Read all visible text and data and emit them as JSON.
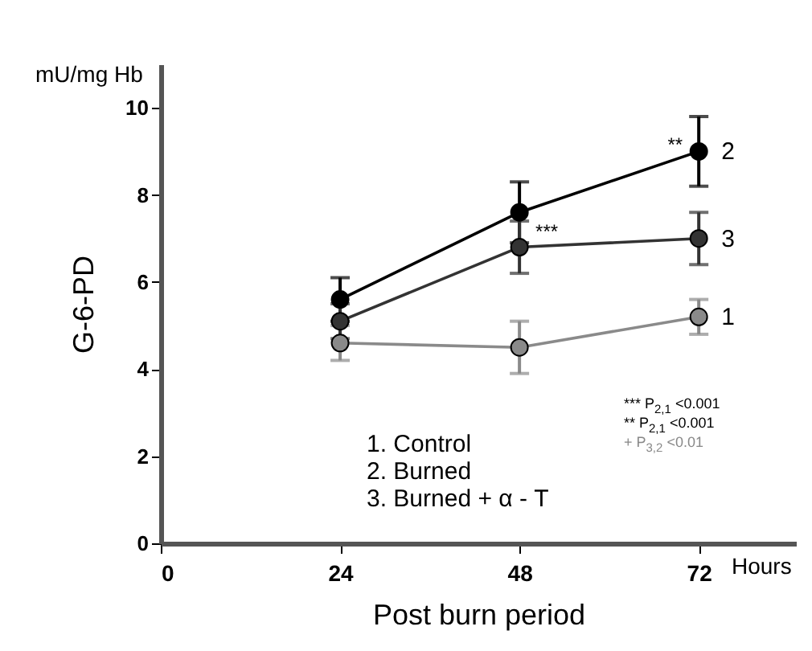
{
  "chart_data": {
    "type": "line",
    "xlabel": "Post burn period",
    "ylabel": "G-6-PD",
    "x": [
      24,
      48,
      72
    ],
    "series": [
      {
        "name": "1",
        "color": "#8a8a8a",
        "values": [
          4.6,
          4.5,
          5.2
        ],
        "errors": [
          0.4,
          0.6,
          0.4
        ]
      },
      {
        "name": "2",
        "color": "#000000",
        "values": [
          5.6,
          7.6,
          9.0
        ],
        "errors": [
          0.5,
          0.7,
          0.8
        ]
      },
      {
        "name": "3",
        "color": "#333333",
        "values": [
          5.1,
          6.8,
          7.0
        ],
        "errors": [
          0.4,
          0.6,
          0.6
        ]
      }
    ],
    "xlim": [
      0,
      85
    ],
    "xticks": [
      0,
      24,
      48,
      72
    ],
    "ylim": [
      0,
      11
    ],
    "yticks": [
      0,
      2,
      4,
      6,
      8,
      10
    ],
    "grid": false,
    "legend": false,
    "marker": "circle",
    "line_style": "solid",
    "annotations": [
      {
        "text": "**",
        "x": 72,
        "y": 9.0
      },
      {
        "text": "***",
        "x": 48,
        "y": 7.6
      },
      "mU/mg Hb",
      "Hours",
      "1. Control",
      "2. Burned",
      "3. Burned + α - T",
      "*** P$_{2,1}$ <0.001",
      "** P$_{2,1}$ <0.001",
      "+ P$_{3,2}$ <0.01"
    ]
  }
}
